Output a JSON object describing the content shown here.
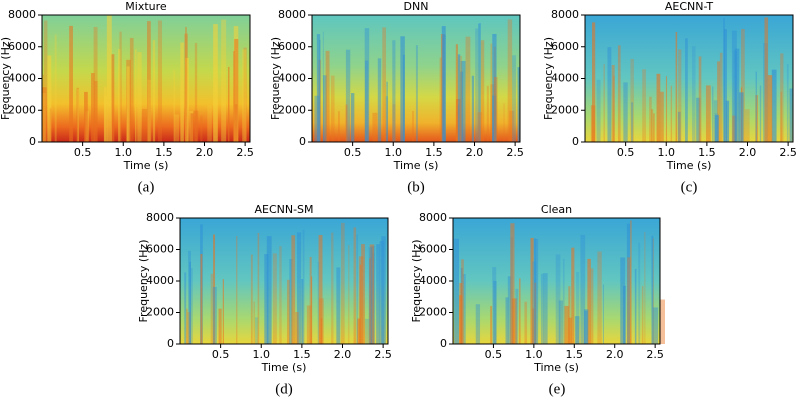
{
  "chart_data": [
    {
      "type": "spectrogram",
      "title": "Mixture",
      "xlabel": "Time (s)",
      "ylabel": "Frequency (Hz)",
      "caption": "(a)",
      "xlim": [
        0,
        2.56
      ],
      "xticks": [
        0.5,
        {
          "value": 1,
          "label": "1.0"
        },
        1.5,
        {
          "value": 2,
          "label": "2.0"
        },
        2.5
      ],
      "ylim": [
        0,
        8000
      ],
      "yticks": [
        0,
        2000,
        4000,
        6000,
        8000
      ],
      "colormap": "jet"
    },
    {
      "type": "spectrogram",
      "title": "DNN",
      "xlabel": "Time (s)",
      "ylabel": "Frequency (Hz)",
      "caption": "(b)",
      "xlim": [
        0,
        2.56
      ],
      "xticks": [
        0.5,
        {
          "value": 1,
          "label": "1.0"
        },
        1.5,
        {
          "value": 2,
          "label": "2.0"
        },
        2.5
      ],
      "ylim": [
        0,
        8000
      ],
      "yticks": [
        0,
        2000,
        4000,
        6000,
        8000
      ],
      "colormap": "jet"
    },
    {
      "type": "spectrogram",
      "title": "AECNN-T",
      "xlabel": "Time (s)",
      "ylabel": "Frequency (Hz)",
      "caption": "(c)",
      "xlim": [
        0,
        2.56
      ],
      "xticks": [
        0.5,
        {
          "value": 1,
          "label": "1.0"
        },
        1.5,
        {
          "value": 2,
          "label": "2.0"
        },
        2.5
      ],
      "ylim": [
        0,
        8000
      ],
      "yticks": [
        0,
        2000,
        4000,
        6000,
        8000
      ],
      "colormap": "jet"
    },
    {
      "type": "spectrogram",
      "title": "AECNN-SM",
      "xlabel": "Time (s)",
      "ylabel": "Frequency (Hz)",
      "caption": "(d)",
      "xlim": [
        0,
        2.56
      ],
      "xticks": [
        0.5,
        {
          "value": 1,
          "label": "1.0"
        },
        1.5,
        {
          "value": 2,
          "label": "2.0"
        },
        2.5
      ],
      "ylim": [
        0,
        8000
      ],
      "yticks": [
        0,
        2000,
        4000,
        6000,
        8000
      ],
      "colormap": "jet"
    },
    {
      "type": "spectrogram",
      "title": "Clean",
      "xlabel": "Time (s)",
      "ylabel": "Frequency (Hz)",
      "caption": "(e)",
      "xlim": [
        0,
        2.56
      ],
      "xticks": [
        0.5,
        {
          "value": 1,
          "label": "1.0"
        },
        1.5,
        {
          "value": 2,
          "label": "2.0"
        },
        2.5
      ],
      "ylim": [
        0,
        8000
      ],
      "yticks": [
        0,
        2000,
        4000,
        6000,
        8000
      ],
      "colormap": "jet"
    }
  ]
}
